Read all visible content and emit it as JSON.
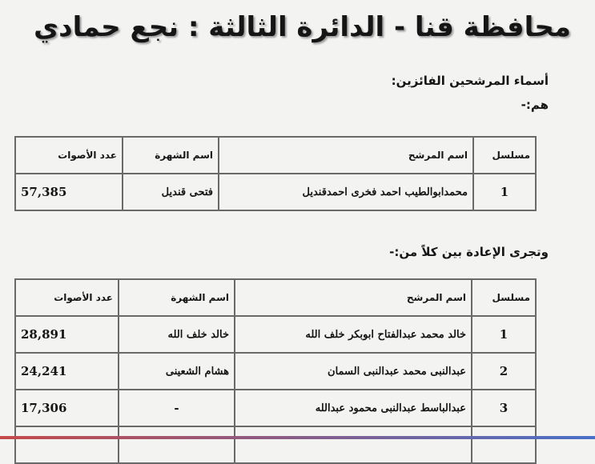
{
  "title": "محافظة قنا - الدائرة الثالثة : نجع حمادي",
  "winners_label": "أسماء المرشحين الفائزين:",
  "winners_sub": "هم:-",
  "columns": {
    "serial": "مسلسل",
    "name": "اسم المرشح",
    "nickname": "اسم الشهرة",
    "votes": "عدد الأصوات"
  },
  "winners": [
    {
      "serial": "1",
      "name": "محمدابوالطيب احمد فخرى احمدقنديل",
      "nickname": "فتحى قنديل",
      "votes": "57,385"
    }
  ],
  "runoff_label": "وتجرى الإعادة بين كلاً من:-",
  "runoff": [
    {
      "serial": "1",
      "name": "خالد محمد عبدالفتاح ابوبكر خلف الله",
      "nickname": "خالد خلف الله",
      "votes": "28,891"
    },
    {
      "serial": "2",
      "name": "عبدالنبى محمد عبدالنبى السمان",
      "nickname": "هشام الشعينى",
      "votes": "24,241"
    },
    {
      "serial": "3",
      "name": "عبدالباسط عبدالنبى محمود عبدالله",
      "nickname": "-",
      "votes": "17,306"
    }
  ]
}
